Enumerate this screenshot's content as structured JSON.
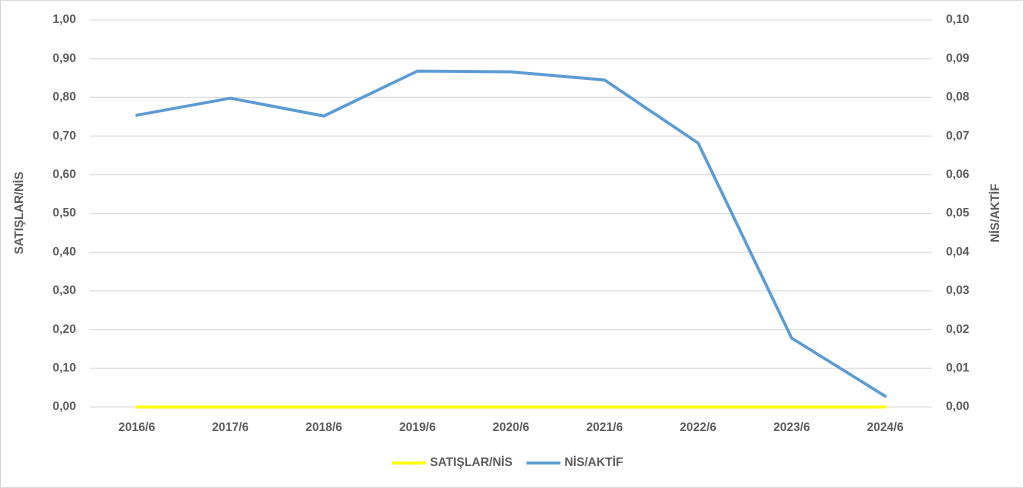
{
  "chart_data": {
    "type": "line",
    "categories": [
      "2016/6",
      "2017/6",
      "2018/6",
      "2019/6",
      "2020/6",
      "2021/6",
      "2022/6",
      "2023/6",
      "2024/6"
    ],
    "series": [
      {
        "name": "SATIŞLAR/NİS",
        "color": "#ffff00",
        "values": [
          0,
          0,
          0,
          0,
          0,
          0,
          0,
          0,
          0
        ]
      },
      {
        "name": "NİS/AKTİF",
        "color": "#5b9bd5",
        "axis": "y2",
        "values": [
          0.0754,
          0.0798,
          0.0752,
          0.0868,
          0.0866,
          0.0845,
          0.0682,
          0.0178,
          0.0028
        ]
      }
    ],
    "ylabel": "SATIŞLAR/NİS",
    "y2label": "NİS/AKTİF",
    "ylim": [
      0,
      1
    ],
    "yticks": [
      {
        "value": 0,
        "label": "0,00"
      },
      {
        "value": 0.1,
        "label": "0,10"
      },
      {
        "value": 0.2,
        "label": "0,20"
      },
      {
        "value": 0.3,
        "label": "0,30"
      },
      {
        "value": 0.4,
        "label": "0,40"
      },
      {
        "value": 0.5,
        "label": "0,50"
      },
      {
        "value": 0.6,
        "label": "0,60"
      },
      {
        "value": 0.7,
        "label": "0,70"
      },
      {
        "value": 0.8,
        "label": "0,80"
      },
      {
        "value": 0.9,
        "label": "0,90"
      },
      {
        "value": 1,
        "label": "1,00"
      }
    ],
    "y2lim": [
      0,
      0.1
    ],
    "y2ticks": [
      {
        "value": 0,
        "label": "0,00"
      },
      {
        "value": 0.01,
        "label": "0,01"
      },
      {
        "value": 0.02,
        "label": "0,02"
      },
      {
        "value": 0.03,
        "label": "0,03"
      },
      {
        "value": 0.04,
        "label": "0,04"
      },
      {
        "value": 0.05,
        "label": "0,05"
      },
      {
        "value": 0.06,
        "label": "0,06"
      },
      {
        "value": 0.07,
        "label": "0,07"
      },
      {
        "value": 0.08,
        "label": "0,08"
      },
      {
        "value": 0.09,
        "label": "0,09"
      },
      {
        "value": 0.1,
        "label": "0,10"
      }
    ],
    "grid": true,
    "legend": "bottom"
  }
}
